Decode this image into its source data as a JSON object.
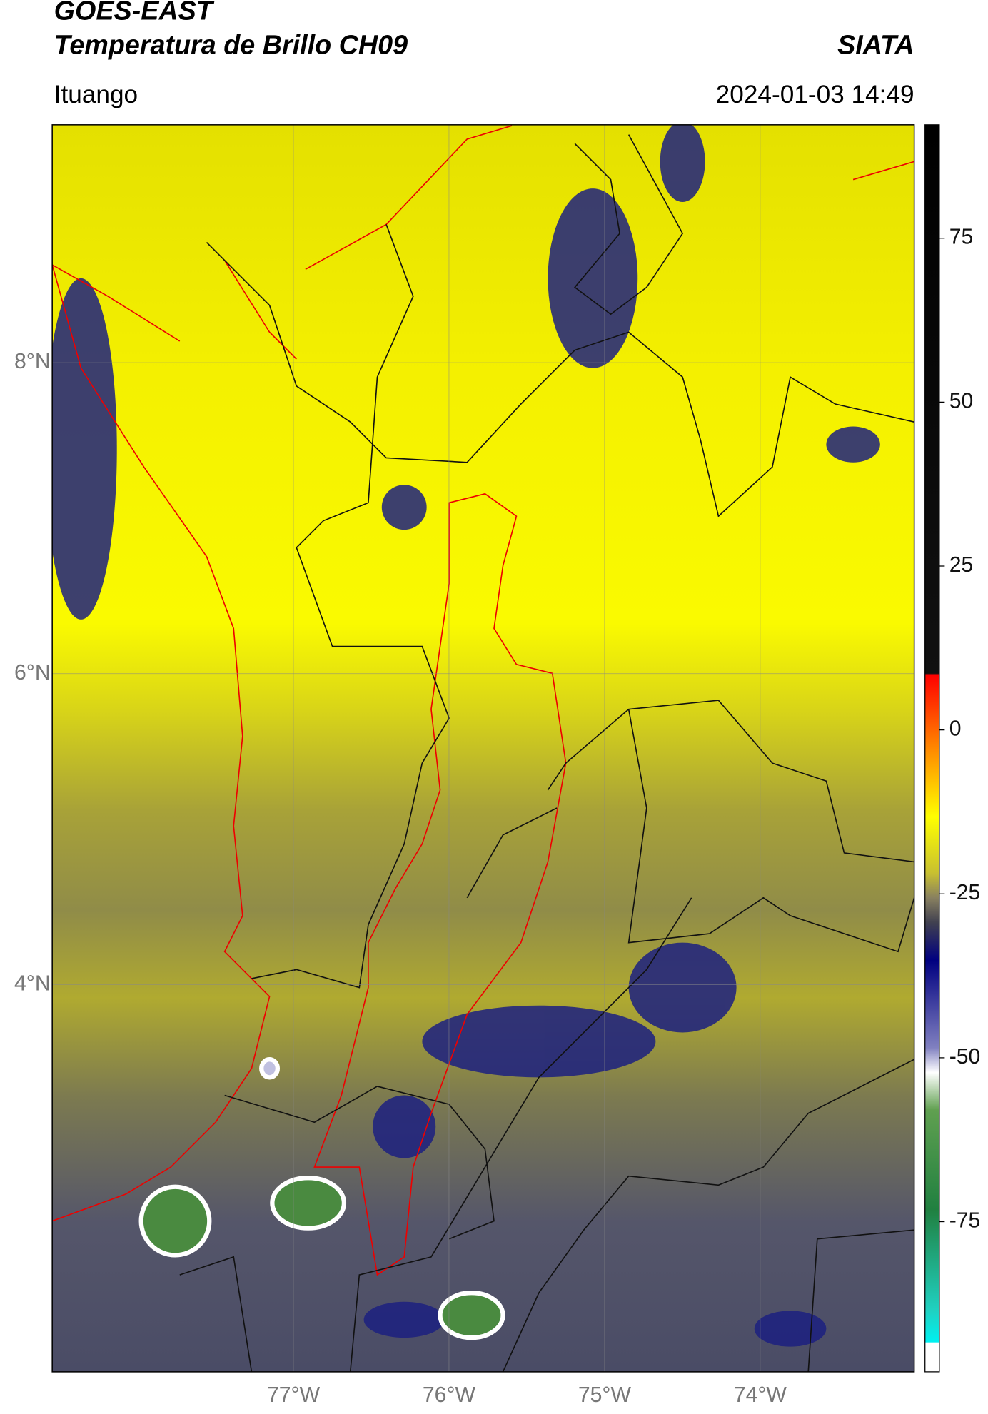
{
  "header": {
    "title": "GOES-EAST",
    "subtitle": "Temperatura de Brillo CH09",
    "source": "SIATA",
    "region": "Ituango",
    "datetime": "2024-01-03 14:49"
  },
  "map": {
    "xlim": [
      -78.55,
      -73.01
    ],
    "ylim": [
      1.51,
      9.53
    ],
    "xticks": [
      {
        "value": -77,
        "label": "77°W"
      },
      {
        "value": -76,
        "label": "76°W"
      },
      {
        "value": -75,
        "label": "75°W"
      },
      {
        "value": -74,
        "label": "74°W"
      }
    ],
    "yticks": [
      {
        "value": 8,
        "label": "8°N"
      },
      {
        "value": 6,
        "label": "6°N"
      },
      {
        "value": 4,
        "label": "4°N"
      }
    ]
  },
  "colorbar": {
    "lim": [
      -97.9,
      92.3
    ],
    "ticks": [
      75,
      50,
      25,
      0,
      -25,
      -50,
      -75
    ]
  }
}
